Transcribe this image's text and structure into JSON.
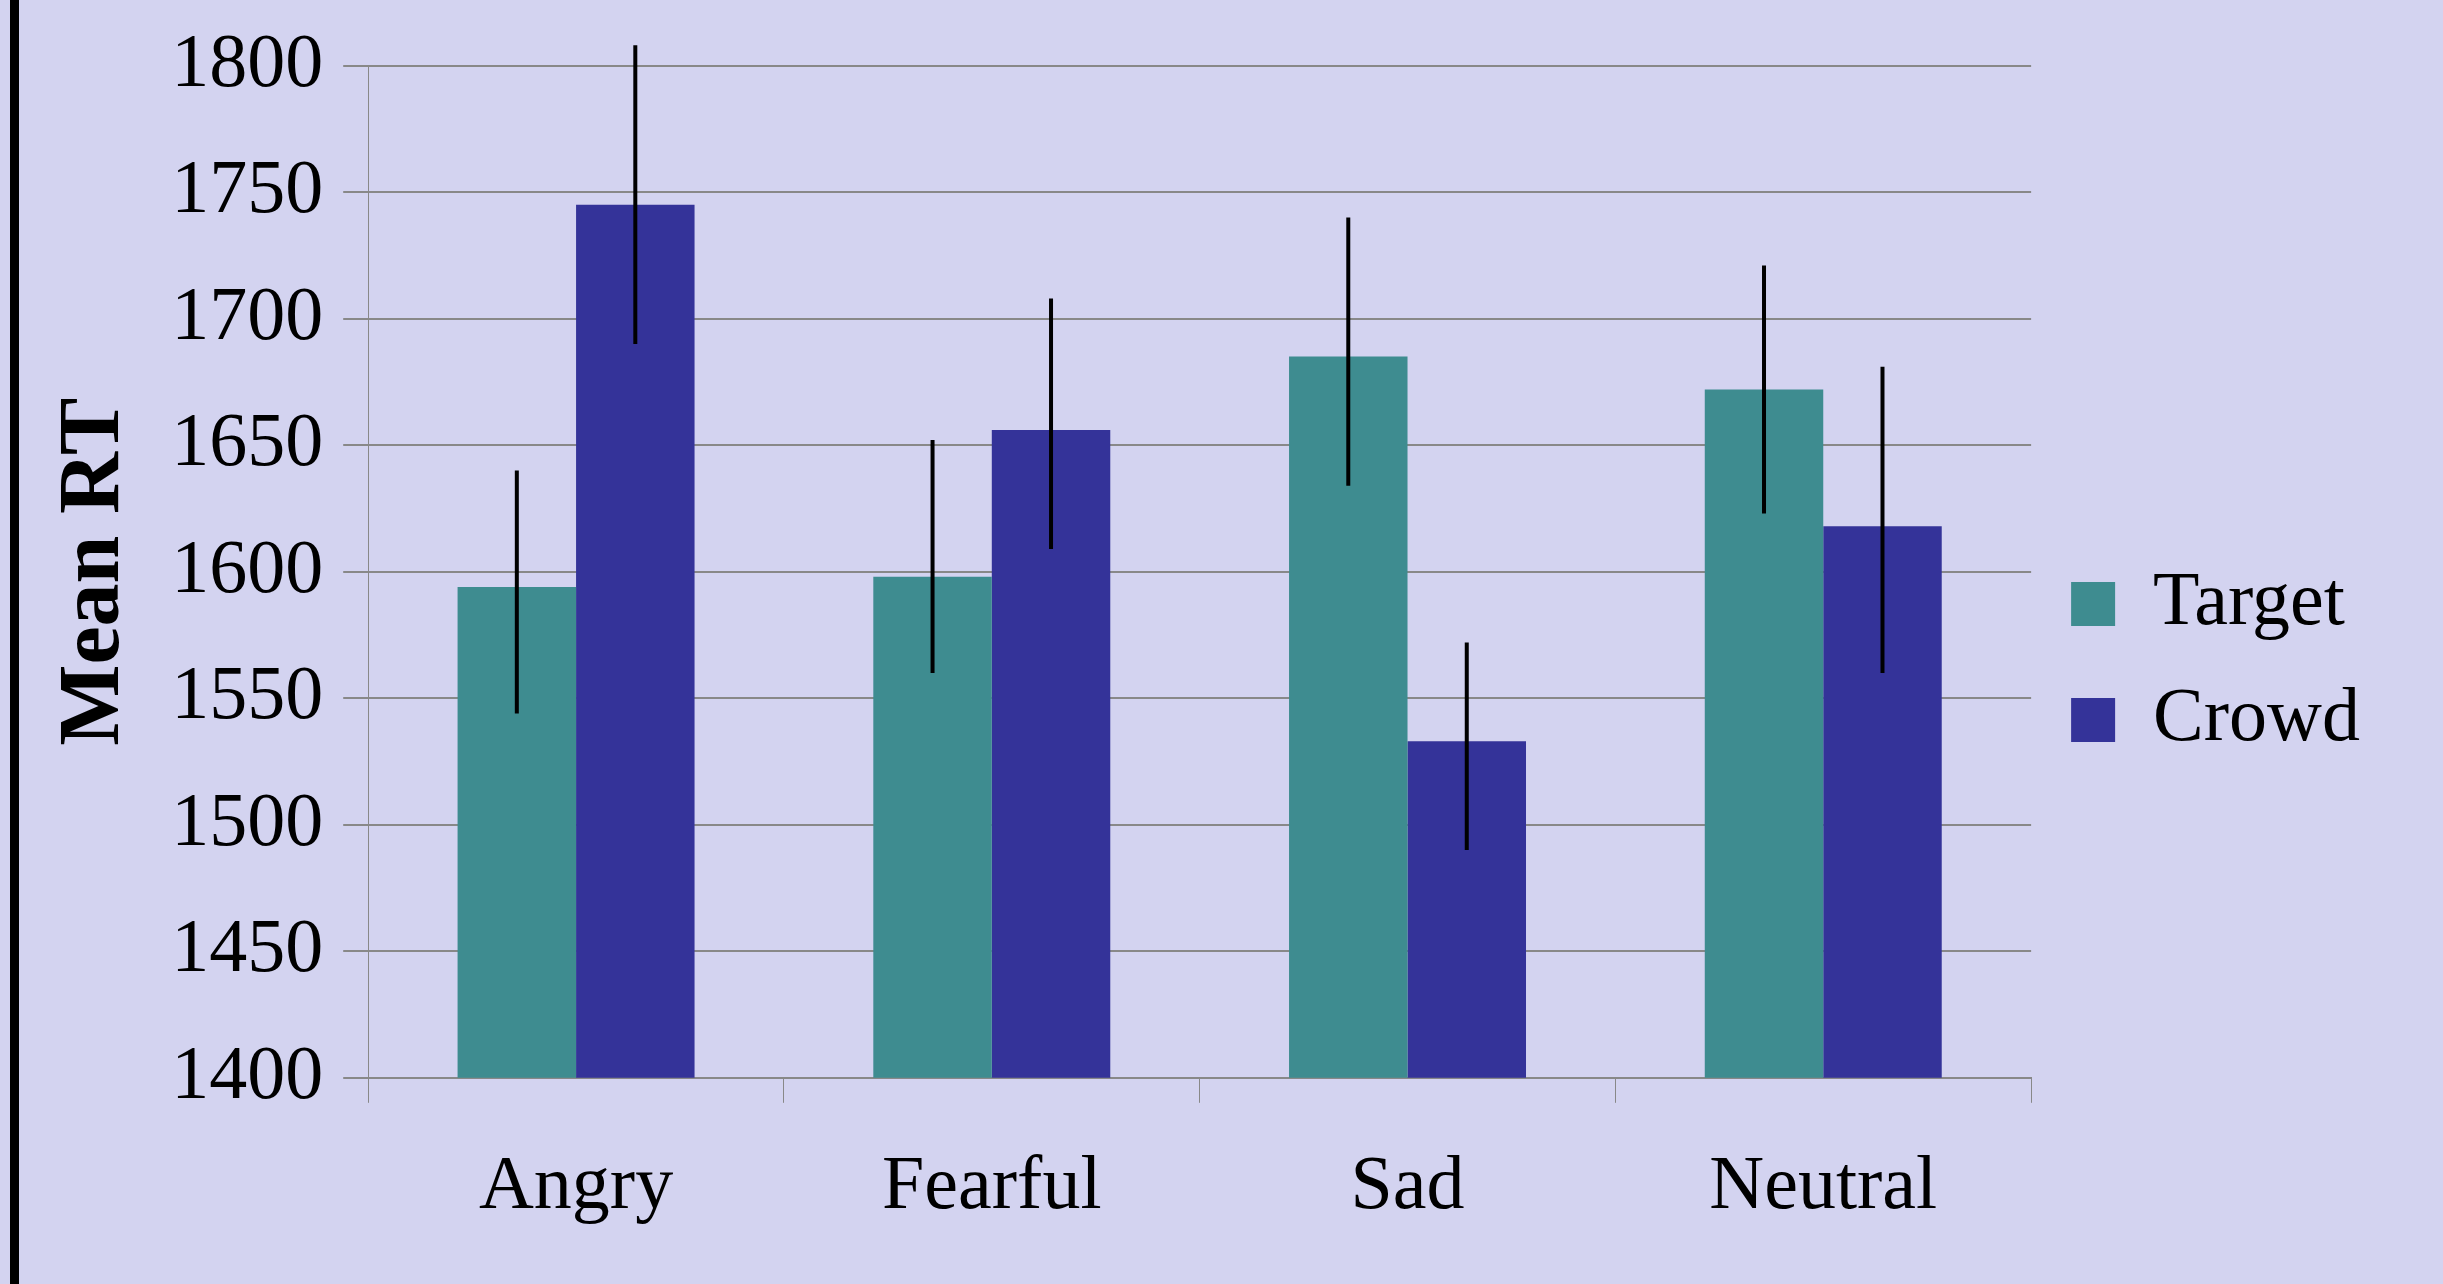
{
  "chart_data": {
    "type": "bar",
    "ylabel": "Mean RT",
    "categories": [
      "Angry",
      "Fearful",
      "Sad",
      "Neutral"
    ],
    "series": [
      {
        "name": "Target",
        "color": "#3e8c90",
        "values": [
          1594,
          1598,
          1685,
          1672
        ],
        "errors": [
          [
            1544,
            1640
          ],
          [
            1560,
            1652
          ],
          [
            1634,
            1740
          ],
          [
            1623,
            1721
          ]
        ]
      },
      {
        "name": "Crowd",
        "color": "#343399",
        "values": [
          1745,
          1656,
          1533,
          1618
        ],
        "errors": [
          [
            1690,
            1808
          ],
          [
            1609,
            1708
          ],
          [
            1490,
            1572
          ],
          [
            1560,
            1681
          ]
        ]
      }
    ],
    "ylim": [
      1400,
      1800
    ],
    "yticks": [
      1400,
      1450,
      1500,
      1550,
      1600,
      1650,
      1700,
      1750,
      1800
    ],
    "grid": "y",
    "legend": "right"
  }
}
